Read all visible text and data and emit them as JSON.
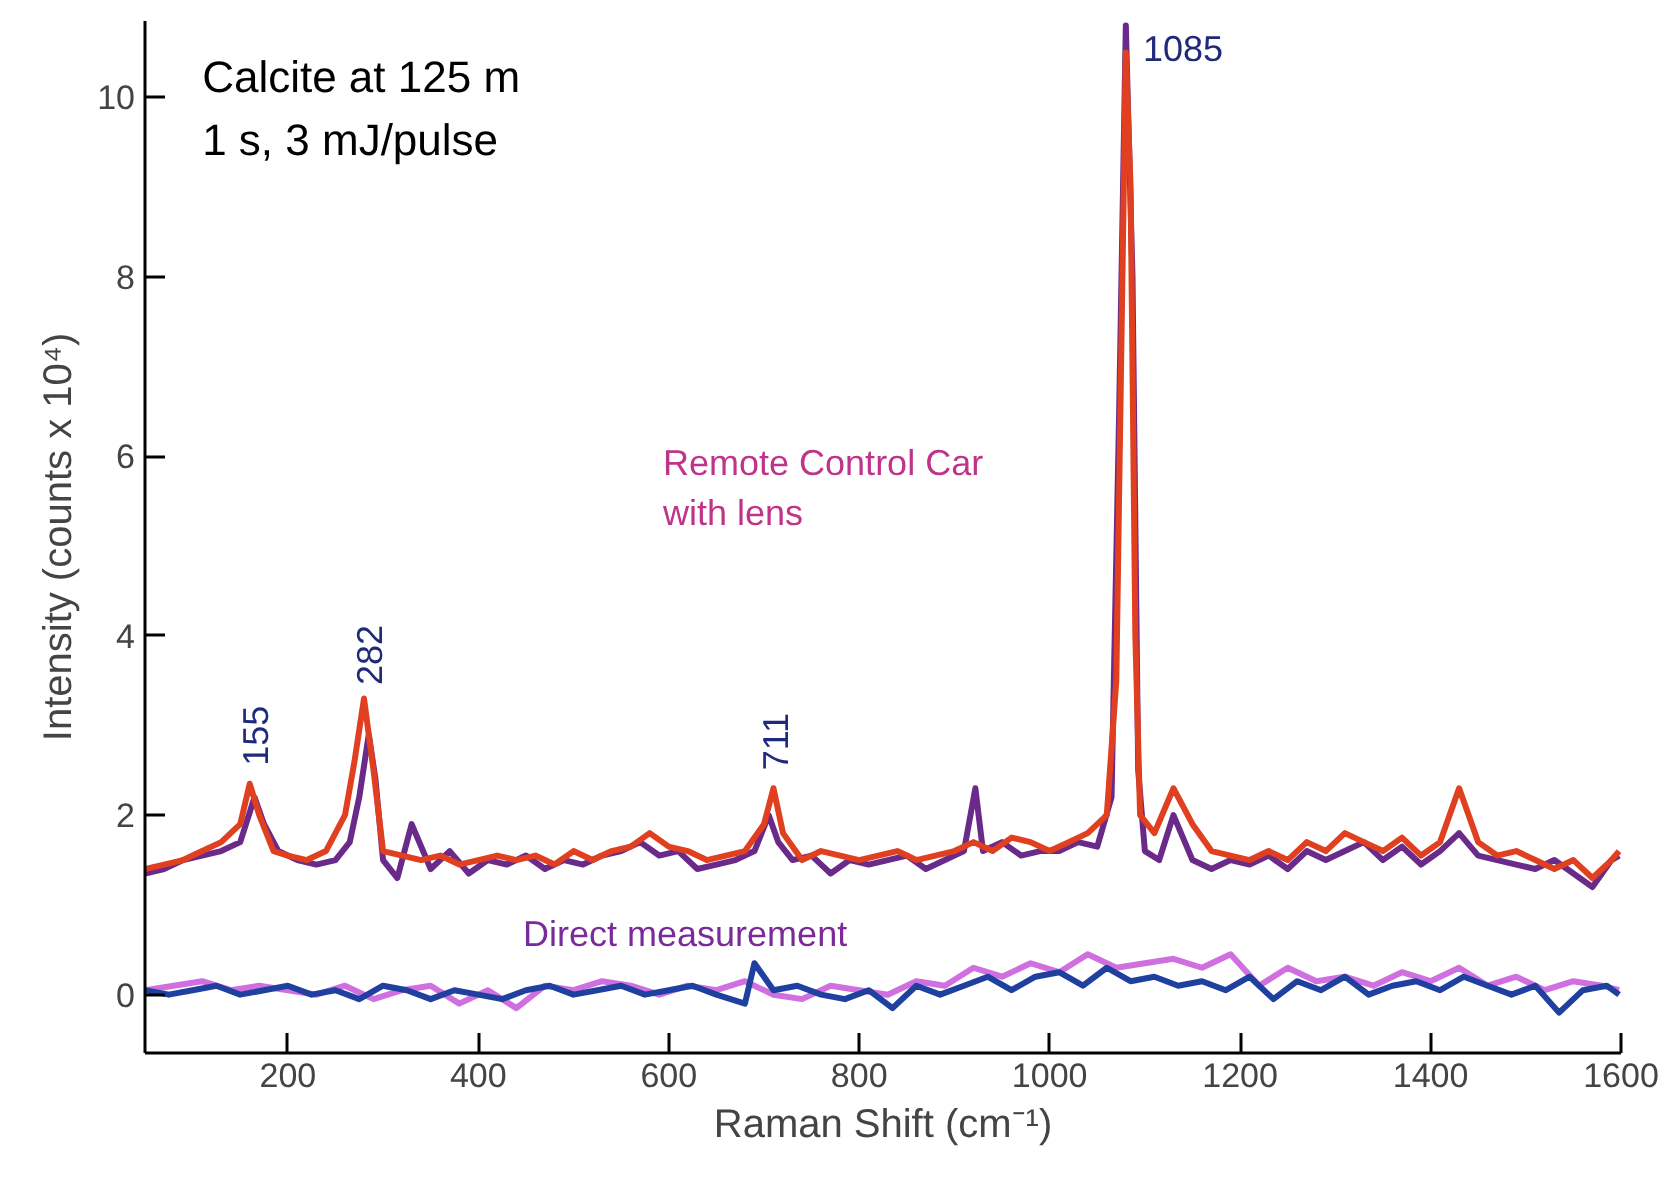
{
  "chart_data": {
    "type": "line",
    "xlabel": "Raman Shift (cm⁻¹)",
    "ylabel": "Intensity (counts x 10⁴)",
    "xlim": [
      50,
      1600
    ],
    "ylim": [
      -0.65,
      10.85
    ],
    "xticks": [
      200,
      400,
      600,
      800,
      1000,
      1200,
      1400,
      1600
    ],
    "yticks": [
      0,
      2,
      4,
      6,
      8,
      10
    ],
    "grid": false,
    "line_style": "solid",
    "marker": "none",
    "series": [
      {
        "color": "#6a2a8a",
        "x": [
          50,
          70,
          90,
          110,
          130,
          150,
          165,
          175,
          190,
          210,
          230,
          250,
          265,
          275,
          285,
          292,
          300,
          315,
          330,
          350,
          370,
          390,
          410,
          430,
          450,
          470,
          490,
          510,
          530,
          550,
          570,
          590,
          610,
          630,
          650,
          670,
          690,
          705,
          715,
          730,
          750,
          770,
          790,
          810,
          830,
          850,
          870,
          890,
          910,
          922,
          930,
          950,
          970,
          990,
          1010,
          1030,
          1050,
          1065,
          1073,
          1080,
          1087,
          1093,
          1100,
          1115,
          1130,
          1150,
          1170,
          1190,
          1210,
          1230,
          1250,
          1270,
          1290,
          1310,
          1330,
          1350,
          1370,
          1390,
          1410,
          1430,
          1450,
          1470,
          1490,
          1510,
          1530,
          1550,
          1570,
          1590,
          1598
        ],
        "values": [
          1.35,
          1.4,
          1.5,
          1.55,
          1.6,
          1.7,
          2.2,
          1.9,
          1.6,
          1.5,
          1.45,
          1.5,
          1.7,
          2.2,
          2.9,
          2.4,
          1.5,
          1.3,
          1.9,
          1.4,
          1.6,
          1.35,
          1.5,
          1.45,
          1.55,
          1.4,
          1.5,
          1.45,
          1.55,
          1.6,
          1.7,
          1.55,
          1.6,
          1.4,
          1.45,
          1.5,
          1.6,
          2.0,
          1.7,
          1.5,
          1.55,
          1.35,
          1.5,
          1.45,
          1.5,
          1.55,
          1.4,
          1.5,
          1.6,
          2.3,
          1.6,
          1.7,
          1.55,
          1.6,
          1.6,
          1.7,
          1.65,
          2.2,
          6.5,
          10.8,
          8.0,
          2.5,
          1.6,
          1.5,
          2.0,
          1.5,
          1.4,
          1.5,
          1.45,
          1.55,
          1.4,
          1.6,
          1.5,
          1.6,
          1.7,
          1.5,
          1.65,
          1.45,
          1.6,
          1.8,
          1.55,
          1.5,
          1.45,
          1.4,
          1.5,
          1.35,
          1.2,
          1.5,
          1.55
        ]
      },
      {
        "color": "#e0401f",
        "x": [
          50,
          70,
          90,
          110,
          130,
          150,
          160,
          170,
          185,
          200,
          220,
          240,
          260,
          270,
          280,
          290,
          300,
          320,
          340,
          360,
          380,
          400,
          420,
          440,
          460,
          480,
          500,
          520,
          540,
          560,
          580,
          600,
          620,
          640,
          660,
          680,
          700,
          710,
          720,
          740,
          760,
          780,
          800,
          820,
          840,
          860,
          880,
          900,
          920,
          940,
          960,
          980,
          1000,
          1020,
          1040,
          1060,
          1070,
          1075,
          1080,
          1085,
          1090,
          1095,
          1110,
          1130,
          1150,
          1170,
          1190,
          1210,
          1230,
          1250,
          1270,
          1290,
          1310,
          1330,
          1350,
          1370,
          1390,
          1410,
          1430,
          1450,
          1470,
          1490,
          1510,
          1530,
          1550,
          1570,
          1590,
          1598
        ],
        "values": [
          1.4,
          1.45,
          1.5,
          1.6,
          1.7,
          1.9,
          2.35,
          2.0,
          1.6,
          1.55,
          1.5,
          1.6,
          2.0,
          2.6,
          3.3,
          2.5,
          1.6,
          1.55,
          1.5,
          1.55,
          1.45,
          1.5,
          1.55,
          1.5,
          1.55,
          1.45,
          1.6,
          1.5,
          1.6,
          1.65,
          1.8,
          1.65,
          1.6,
          1.5,
          1.55,
          1.6,
          1.9,
          2.3,
          1.8,
          1.5,
          1.6,
          1.55,
          1.5,
          1.55,
          1.6,
          1.5,
          1.55,
          1.6,
          1.7,
          1.6,
          1.75,
          1.7,
          1.6,
          1.7,
          1.8,
          2.0,
          3.5,
          7.0,
          10.5,
          9.0,
          4.0,
          2.0,
          1.8,
          2.3,
          1.9,
          1.6,
          1.55,
          1.5,
          1.6,
          1.5,
          1.7,
          1.6,
          1.8,
          1.7,
          1.6,
          1.75,
          1.55,
          1.7,
          2.3,
          1.7,
          1.55,
          1.6,
          1.5,
          1.4,
          1.5,
          1.3,
          1.5,
          1.6
        ]
      },
      {
        "color": "#d070e0",
        "x": [
          50,
          80,
          110,
          140,
          170,
          200,
          230,
          260,
          290,
          320,
          350,
          380,
          410,
          440,
          470,
          500,
          530,
          560,
          590,
          620,
          650,
          680,
          710,
          740,
          770,
          800,
          830,
          860,
          890,
          920,
          950,
          980,
          1010,
          1040,
          1070,
          1100,
          1130,
          1160,
          1190,
          1220,
          1250,
          1280,
          1310,
          1340,
          1370,
          1400,
          1430,
          1460,
          1490,
          1520,
          1550,
          1580,
          1598
        ],
        "values": [
          0.05,
          0.1,
          0.15,
          0.05,
          0.1,
          0.05,
          0.0,
          0.1,
          -0.05,
          0.05,
          0.1,
          -0.1,
          0.05,
          -0.15,
          0.1,
          0.05,
          0.15,
          0.1,
          0.0,
          0.1,
          0.05,
          0.15,
          0.0,
          -0.05,
          0.1,
          0.05,
          0.0,
          0.15,
          0.1,
          0.3,
          0.2,
          0.35,
          0.25,
          0.45,
          0.3,
          0.35,
          0.4,
          0.3,
          0.45,
          0.1,
          0.3,
          0.15,
          0.2,
          0.1,
          0.25,
          0.15,
          0.3,
          0.1,
          0.2,
          0.05,
          0.15,
          0.1,
          0.05
        ]
      },
      {
        "color": "#2040a0",
        "x": [
          50,
          75,
          100,
          125,
          150,
          175,
          200,
          225,
          250,
          275,
          300,
          325,
          350,
          375,
          400,
          425,
          450,
          475,
          500,
          525,
          550,
          575,
          600,
          625,
          650,
          680,
          690,
          710,
          735,
          760,
          785,
          810,
          835,
          860,
          885,
          910,
          935,
          960,
          985,
          1010,
          1035,
          1060,
          1085,
          1110,
          1135,
          1160,
          1185,
          1210,
          1235,
          1260,
          1285,
          1310,
          1335,
          1360,
          1385,
          1410,
          1435,
          1460,
          1485,
          1510,
          1535,
          1560,
          1585,
          1598
        ],
        "values": [
          0.05,
          0.0,
          0.05,
          0.1,
          0.0,
          0.05,
          0.1,
          0.0,
          0.05,
          -0.05,
          0.1,
          0.05,
          -0.05,
          0.05,
          0.0,
          -0.05,
          0.05,
          0.1,
          0.0,
          0.05,
          0.1,
          0.0,
          0.05,
          0.1,
          0.0,
          -0.1,
          0.35,
          0.05,
          0.1,
          0.0,
          -0.05,
          0.05,
          -0.15,
          0.1,
          0.0,
          0.1,
          0.2,
          0.05,
          0.2,
          0.25,
          0.1,
          0.3,
          0.15,
          0.2,
          0.1,
          0.15,
          0.05,
          0.2,
          -0.05,
          0.15,
          0.05,
          0.2,
          0.0,
          0.1,
          0.15,
          0.05,
          0.2,
          0.1,
          0.0,
          0.1,
          -0.2,
          0.05,
          0.1,
          0.0
        ]
      }
    ],
    "annotations": [
      "Calcite at 125 m\n1 s, 3 mJ/pulse",
      "Remote Control Car\nwith lens",
      "Direct measurement",
      "155",
      "282",
      "711",
      "1085"
    ]
  }
}
